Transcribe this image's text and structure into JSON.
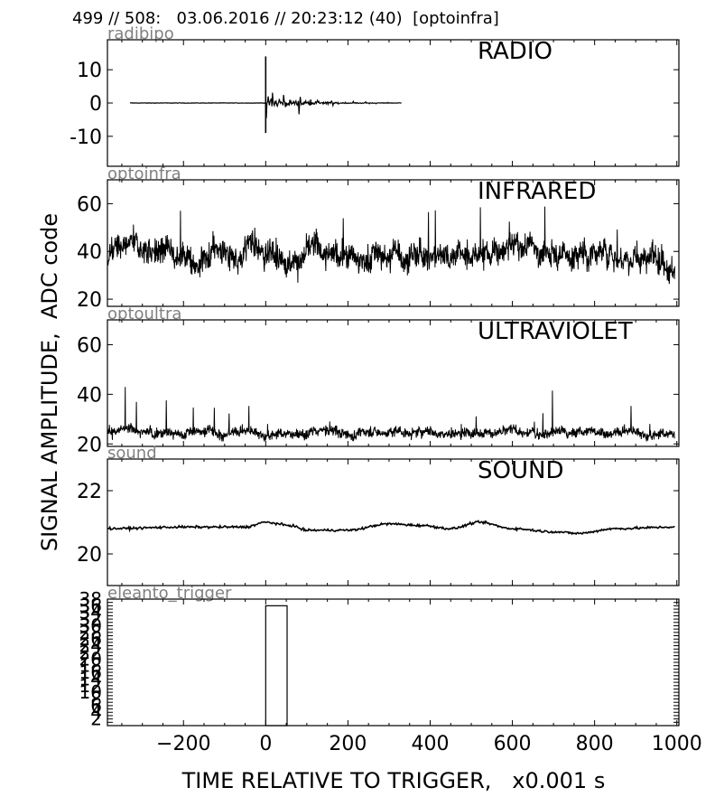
{
  "header": {
    "text": "499 // 508:   03.06.2016 // 20:23:12 (40)  [optoinfra]"
  },
  "figure": {
    "ylabel": "SIGNAL AMPLITUDE,  ADC code",
    "xlabel": "TIME RELATIVE TO TRIGGER,   x0.001 s",
    "x_tick_labels": [
      "−200",
      "0",
      "200",
      "400",
      "600",
      "800",
      "1000"
    ]
  },
  "chart_data": [
    {
      "type": "line",
      "channel": "radibipo",
      "title": "RADIO",
      "xlim": [
        -385,
        1005
      ],
      "ylim": [
        -19,
        19
      ],
      "yticks": [
        -10,
        0,
        10
      ],
      "ytick_labels": [
        "-10",
        "0",
        "10"
      ],
      "trace": {
        "x_range": [
          -330,
          330
        ],
        "baseline": 0,
        "spike_x": 0,
        "spike_min": -9,
        "spike_max": 14,
        "noise_after_spike": 1.3
      }
    },
    {
      "type": "line",
      "channel": "optoinfra",
      "title": "INFRARED",
      "xlim": [
        -385,
        1005
      ],
      "ylim": [
        17,
        70
      ],
      "yticks": [
        20,
        40,
        60
      ],
      "ytick_labels": [
        "20",
        "40",
        "60"
      ],
      "trace": {
        "x_range": [
          -385,
          995
        ],
        "mean": 39,
        "spread": 7,
        "max": 66,
        "min": 24
      }
    },
    {
      "type": "line",
      "channel": "optoultra",
      "title": "ULTRAVIOLET",
      "xlim": [
        -385,
        1005
      ],
      "ylim": [
        19,
        70
      ],
      "yticks": [
        20,
        40,
        60
      ],
      "ytick_labels": [
        "20",
        "40",
        "60"
      ],
      "trace": {
        "x_range": [
          -385,
          995
        ],
        "mean": 25,
        "spread": 2.5,
        "max": 47,
        "min": 21
      }
    },
    {
      "type": "line",
      "channel": "sound",
      "title": "SOUND",
      "xlim": [
        -385,
        1005
      ],
      "ylim": [
        19,
        23
      ],
      "yticks": [
        20,
        22
      ],
      "ytick_labels": [
        "20",
        "22"
      ],
      "trace": {
        "x_range": [
          -385,
          995
        ],
        "points": [
          [
            -385,
            20.8
          ],
          [
            -200,
            20.85
          ],
          [
            -50,
            20.85
          ],
          [
            0,
            21.0
          ],
          [
            60,
            20.9
          ],
          [
            100,
            20.75
          ],
          [
            200,
            20.75
          ],
          [
            300,
            20.95
          ],
          [
            380,
            20.9
          ],
          [
            450,
            20.8
          ],
          [
            520,
            21.0
          ],
          [
            600,
            20.8
          ],
          [
            700,
            20.7
          ],
          [
            760,
            20.65
          ],
          [
            850,
            20.8
          ],
          [
            995,
            20.85
          ]
        ]
      }
    },
    {
      "type": "bar",
      "channel": "eleanto_trigger",
      "xlim": [
        -385,
        1005
      ],
      "ylim": [
        0,
        38
      ],
      "yticks": [
        1,
        2,
        3,
        4,
        5,
        6,
        7,
        8,
        9,
        10,
        11,
        12,
        13,
        14,
        15,
        16,
        17,
        18,
        19,
        20,
        21,
        22,
        23,
        24,
        25,
        26,
        27,
        28,
        29,
        30,
        31,
        32,
        33,
        34,
        35,
        36,
        37,
        38
      ],
      "ytick_labels": [
        "2",
        "4",
        "6",
        "8",
        "10",
        "12",
        "14",
        "16",
        "18",
        "20",
        "22",
        "24",
        "26",
        "28",
        "30",
        "32",
        "34",
        "36",
        "38"
      ],
      "bars": [
        {
          "x0": 0,
          "x1": 52,
          "value": 36
        }
      ]
    }
  ]
}
